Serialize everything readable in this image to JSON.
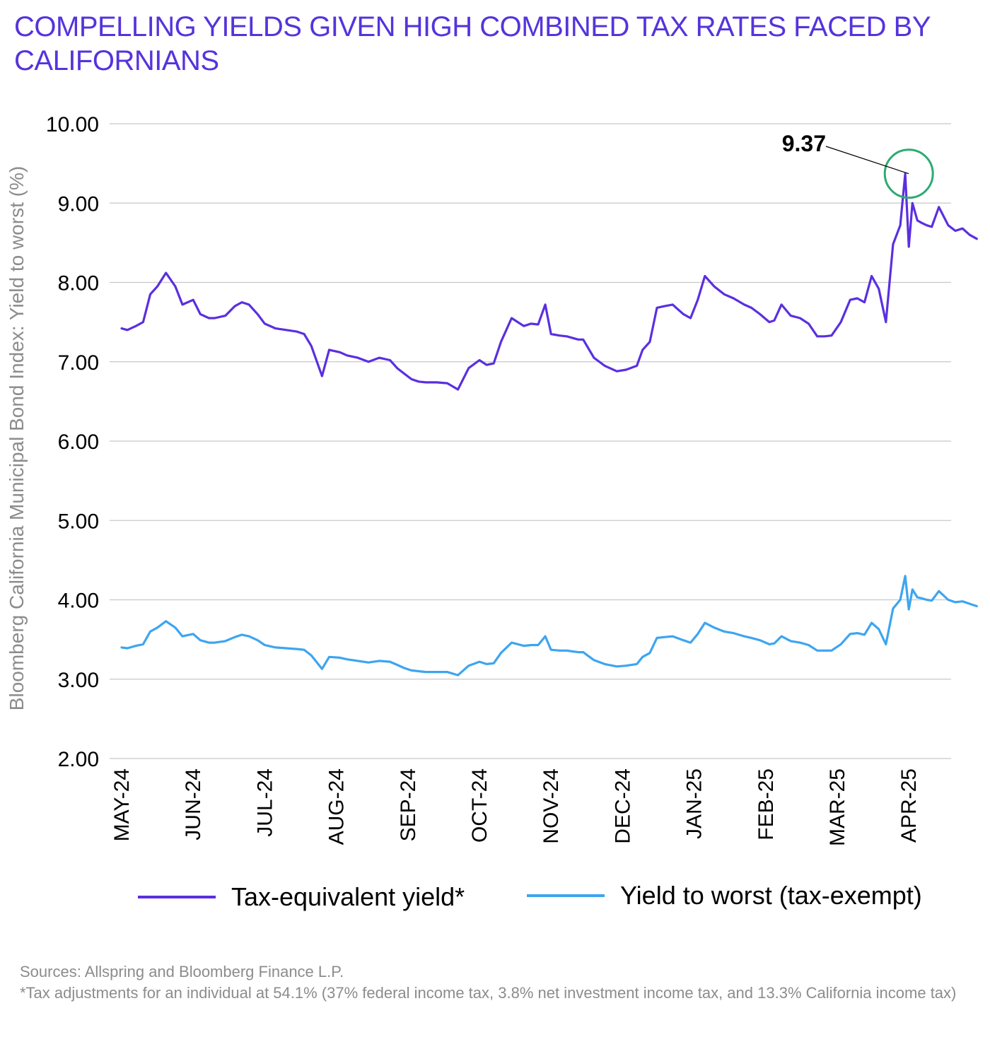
{
  "title": "COMPELLING YIELDS GIVEN HIGH COMBINED TAX RATES FACED BY CALIFORNIANS",
  "colors": {
    "title": "#5533dd",
    "tax_equivalent": "#5a2fe0",
    "yield_to_worst": "#3da5f0",
    "highlight_circle": "#2eaa72",
    "grid": "#c8c8c8",
    "muted_text": "#8c8c8c"
  },
  "chart_data": {
    "type": "line",
    "title": "COMPELLING YIELDS GIVEN HIGH COMBINED TAX RATES FACED BY CALIFORNIANS",
    "xlabel": "",
    "ylabel": "Bloomberg California Municipal Bond Index: Yield to worst (%)",
    "ylim": [
      2,
      10
    ],
    "yticks": [
      "2.00",
      "3.00",
      "4.00",
      "5.00",
      "6.00",
      "7.00",
      "8.00",
      "9.00",
      "10.00"
    ],
    "grid": true,
    "x_unit": "months since May 1, 2024",
    "xlim": [
      0,
      11.95
    ],
    "categories": [
      "MAY-24",
      "JUN-24",
      "JUL-24",
      "AUG-24",
      "SEP-24",
      "OCT-24",
      "NOV-24",
      "DEC-24",
      "JAN-25",
      "FEB-25",
      "MAR-25",
      "APR-25"
    ],
    "series": [
      {
        "name": "Tax-equivalent yield*",
        "color": "#5a2fe0",
        "x": [
          0,
          0.08,
          0.2,
          0.3,
          0.4,
          0.5,
          0.62,
          0.75,
          0.85,
          1.0,
          1.1,
          1.22,
          1.3,
          1.45,
          1.58,
          1.68,
          1.78,
          1.9,
          2.0,
          2.15,
          2.3,
          2.45,
          2.55,
          2.65,
          2.8,
          2.9,
          3.05,
          3.15,
          3.3,
          3.45,
          3.6,
          3.75,
          3.85,
          3.95,
          4.05,
          4.15,
          4.25,
          4.4,
          4.55,
          4.7,
          4.85,
          5.0,
          5.1,
          5.2,
          5.3,
          5.45,
          5.62,
          5.72,
          5.82,
          5.92,
          6.0,
          6.12,
          6.22,
          6.3,
          6.38,
          6.45,
          6.6,
          6.75,
          6.92,
          7.05,
          7.2,
          7.28,
          7.38,
          7.48,
          7.58,
          7.7,
          7.85,
          7.95,
          8.05,
          8.15,
          8.28,
          8.42,
          8.55,
          8.7,
          8.8,
          8.92,
          9.05,
          9.12,
          9.22,
          9.35,
          9.48,
          9.6,
          9.72,
          9.82,
          9.92,
          10.05,
          10.18,
          10.28,
          10.38,
          10.48,
          10.58,
          10.68,
          10.78,
          10.88,
          10.95,
          11.0,
          11.05,
          11.12,
          11.18,
          11.25,
          11.32,
          11.42,
          11.55,
          11.65,
          11.75,
          11.85,
          11.95
        ],
        "values": [
          7.42,
          7.4,
          7.45,
          7.5,
          7.85,
          7.95,
          8.12,
          7.95,
          7.72,
          7.78,
          7.6,
          7.55,
          7.55,
          7.58,
          7.7,
          7.75,
          7.72,
          7.6,
          7.48,
          7.42,
          7.4,
          7.38,
          7.35,
          7.2,
          6.82,
          7.15,
          7.12,
          7.08,
          7.05,
          7.0,
          7.05,
          7.02,
          6.92,
          6.85,
          6.78,
          6.75,
          6.74,
          6.74,
          6.73,
          6.65,
          6.92,
          7.02,
          6.96,
          6.98,
          7.25,
          7.55,
          7.45,
          7.48,
          7.47,
          7.72,
          7.35,
          7.33,
          7.32,
          7.3,
          7.28,
          7.28,
          7.05,
          6.95,
          6.88,
          6.9,
          6.95,
          7.15,
          7.25,
          7.68,
          7.7,
          7.72,
          7.6,
          7.55,
          7.78,
          8.08,
          7.95,
          7.85,
          7.8,
          7.72,
          7.68,
          7.6,
          7.5,
          7.52,
          7.72,
          7.58,
          7.55,
          7.48,
          7.32,
          7.32,
          7.33,
          7.5,
          7.78,
          7.8,
          7.75,
          8.08,
          7.92,
          7.5,
          8.48,
          8.72,
          9.37,
          8.45,
          9.0,
          8.78,
          8.75,
          8.72,
          8.7,
          8.95,
          8.72,
          8.65,
          8.68,
          8.6,
          8.55
        ]
      },
      {
        "name": "Yield to worst (tax-exempt)",
        "color": "#3da5f0",
        "x": [
          0,
          0.08,
          0.2,
          0.3,
          0.4,
          0.5,
          0.62,
          0.75,
          0.85,
          1.0,
          1.1,
          1.22,
          1.3,
          1.45,
          1.58,
          1.68,
          1.78,
          1.9,
          2.0,
          2.15,
          2.3,
          2.45,
          2.55,
          2.65,
          2.8,
          2.9,
          3.05,
          3.15,
          3.3,
          3.45,
          3.6,
          3.75,
          3.85,
          3.95,
          4.05,
          4.15,
          4.25,
          4.4,
          4.55,
          4.7,
          4.85,
          5.0,
          5.1,
          5.2,
          5.3,
          5.45,
          5.62,
          5.72,
          5.82,
          5.92,
          6.0,
          6.12,
          6.22,
          6.3,
          6.38,
          6.45,
          6.6,
          6.75,
          6.92,
          7.05,
          7.2,
          7.28,
          7.38,
          7.48,
          7.58,
          7.7,
          7.85,
          7.95,
          8.05,
          8.15,
          8.28,
          8.42,
          8.55,
          8.7,
          8.8,
          8.92,
          9.05,
          9.12,
          9.22,
          9.35,
          9.48,
          9.6,
          9.72,
          9.82,
          9.92,
          10.05,
          10.18,
          10.28,
          10.38,
          10.48,
          10.58,
          10.68,
          10.78,
          10.88,
          10.95,
          11.0,
          11.05,
          11.12,
          11.18,
          11.25,
          11.32,
          11.42,
          11.55,
          11.65,
          11.75,
          11.85,
          11.95
        ],
        "values": [
          3.4,
          3.39,
          3.42,
          3.44,
          3.6,
          3.65,
          3.73,
          3.65,
          3.54,
          3.57,
          3.49,
          3.46,
          3.46,
          3.48,
          3.53,
          3.56,
          3.54,
          3.49,
          3.43,
          3.4,
          3.39,
          3.38,
          3.37,
          3.3,
          3.13,
          3.28,
          3.27,
          3.25,
          3.23,
          3.21,
          3.23,
          3.22,
          3.18,
          3.14,
          3.11,
          3.1,
          3.09,
          3.09,
          3.09,
          3.05,
          3.17,
          3.22,
          3.19,
          3.2,
          3.33,
          3.46,
          3.42,
          3.43,
          3.43,
          3.54,
          3.37,
          3.36,
          3.36,
          3.35,
          3.34,
          3.34,
          3.24,
          3.19,
          3.16,
          3.17,
          3.19,
          3.28,
          3.33,
          3.52,
          3.53,
          3.54,
          3.49,
          3.46,
          3.57,
          3.71,
          3.65,
          3.6,
          3.58,
          3.54,
          3.52,
          3.49,
          3.44,
          3.45,
          3.54,
          3.48,
          3.46,
          3.43,
          3.36,
          3.36,
          3.36,
          3.44,
          3.57,
          3.58,
          3.56,
          3.71,
          3.63,
          3.44,
          3.89,
          4.0,
          4.3,
          3.88,
          4.13,
          4.03,
          4.02,
          4.0,
          3.99,
          4.11,
          4.0,
          3.97,
          3.98,
          3.95,
          3.92
        ]
      }
    ],
    "annotations": [
      {
        "text": "9.37",
        "series": "Tax-equivalent yield*",
        "x": 11.0,
        "y": 9.37,
        "note": "peak, circled in green"
      }
    ],
    "legend": {
      "position": "bottom",
      "entries": [
        "Tax-equivalent yield*",
        "Yield to worst (tax-exempt)"
      ]
    }
  },
  "footer": {
    "sources": "Sources: Allspring and Bloomberg Finance L.P.",
    "footnote": "*Tax adjustments for an individual at 54.1% (37% federal income tax, 3.8% net investment income tax, and 13.3% California income tax)"
  }
}
